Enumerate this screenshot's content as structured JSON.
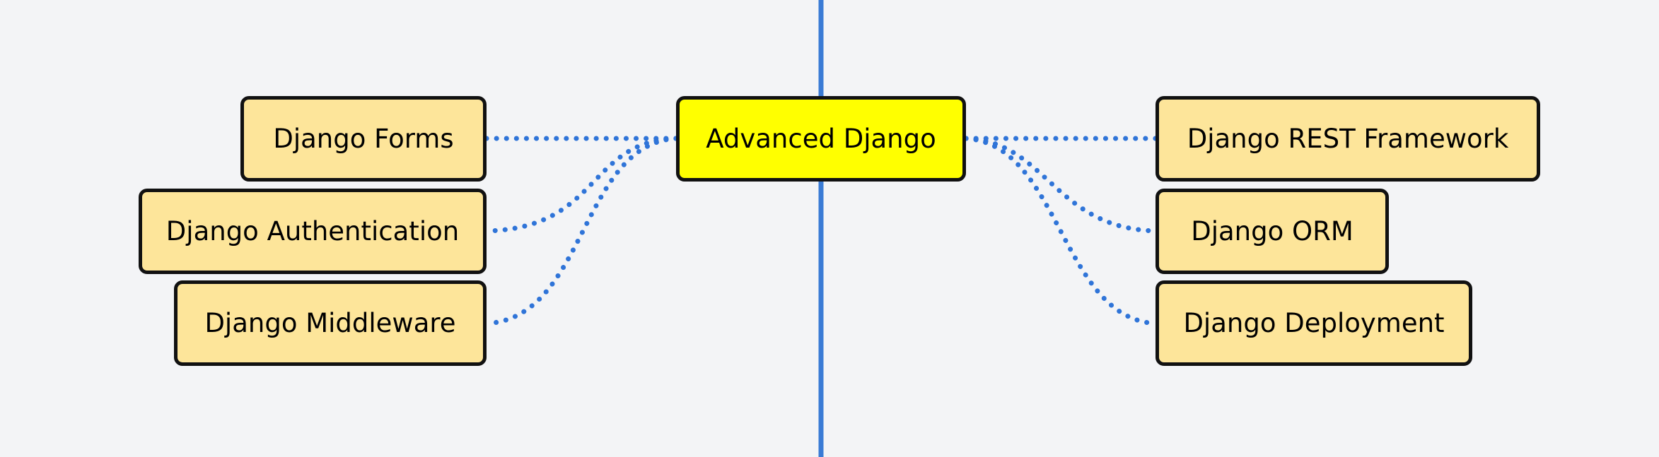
{
  "colors": {
    "background": "#f3f4f6",
    "axis_line": "#3a7bd5",
    "connector": "#2f74d8",
    "center_fill": "#ffff00",
    "child_fill": "#fde59a",
    "border": "#111111"
  },
  "center": {
    "label": "Advanced Django"
  },
  "left_nodes": [
    {
      "label": "Django Forms"
    },
    {
      "label": "Django Authentication"
    },
    {
      "label": "Django Middleware"
    }
  ],
  "right_nodes": [
    {
      "label": "Django REST Framework"
    },
    {
      "label": "Django ORM"
    },
    {
      "label": "Django Deployment"
    }
  ]
}
